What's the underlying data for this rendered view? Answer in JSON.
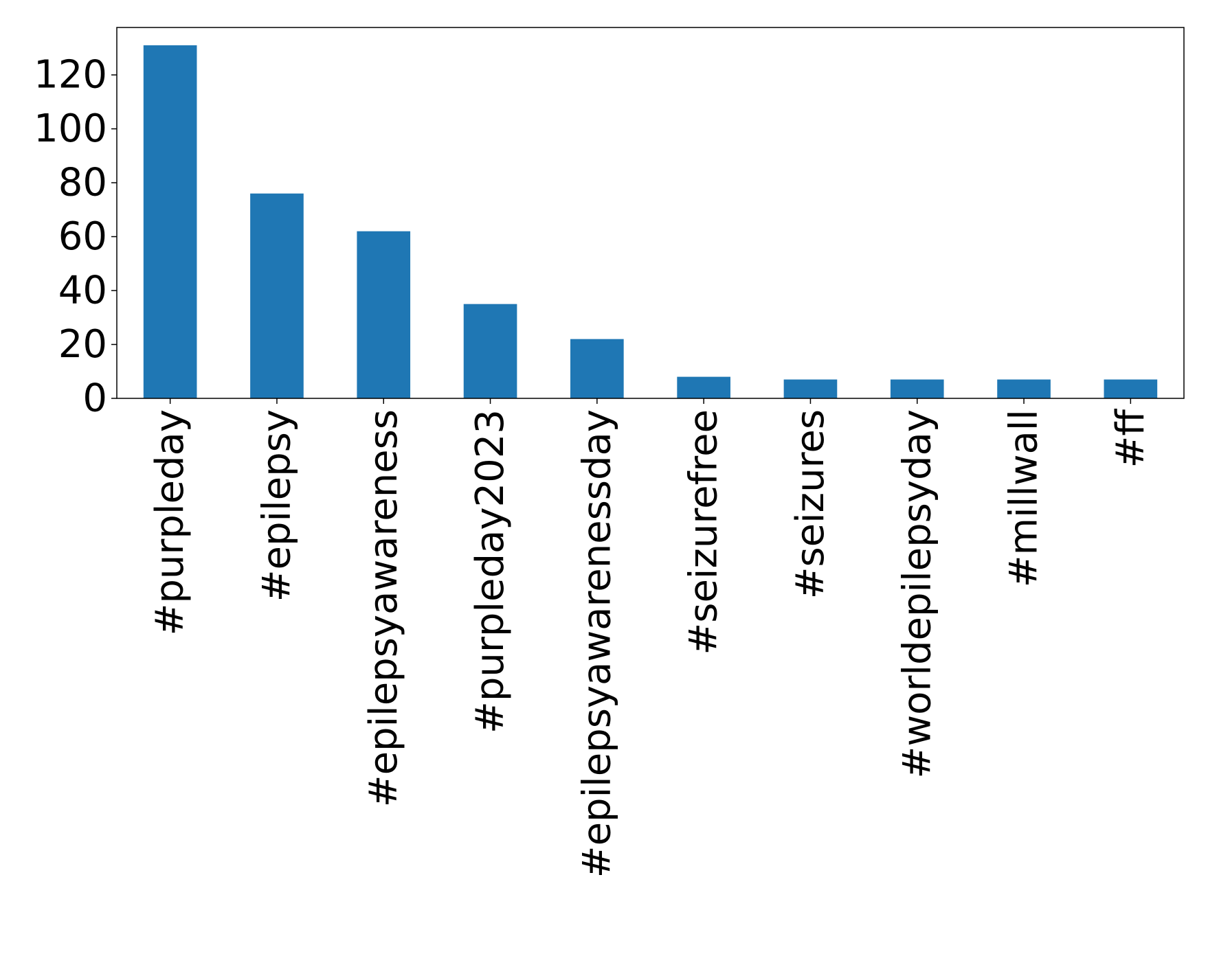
{
  "chart_data": {
    "type": "bar",
    "title": "",
    "xlabel": "",
    "ylabel": "",
    "categories": [
      "#purpleday",
      "#epilepsy",
      "#epilepsyawareness",
      "#purpleday2023",
      "#epilepsyawarenessday",
      "#seizurefree",
      "#seizures",
      "#worldepilepsyday",
      "#millwall",
      "#ff"
    ],
    "values": [
      131,
      76,
      62,
      35,
      22,
      8,
      7,
      7,
      7,
      7
    ],
    "ylim": [
      0,
      137.6
    ],
    "yticks": [
      0,
      20,
      40,
      60,
      80,
      100,
      120
    ],
    "ytick_labels": [
      "0",
      "20",
      "40",
      "60",
      "80",
      "100",
      "120"
    ],
    "bar_color": "#1f77b4",
    "grid": false,
    "legend": "none"
  }
}
